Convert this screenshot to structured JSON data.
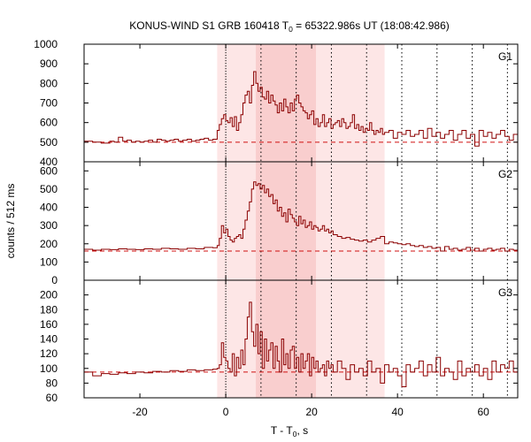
{
  "chart_data": {
    "type": "line",
    "title": {
      "prefix": "KONUS-WIND S1 GRB 160418 T",
      "sub": "0",
      "suffix": " = 65322.986s UT (18:08:42.986)"
    },
    "xlabel": {
      "prefix": "T - T",
      "sub": "0",
      "suffix": ", s"
    },
    "ylabel": "counts / 512 ms",
    "xlim": [
      -33,
      68
    ],
    "xticks": [
      -20,
      0,
      20,
      40,
      60
    ],
    "colors": {
      "line": "#8b0000",
      "background_dashed": "#d01010",
      "shade_outer": "#fde6e6",
      "shade_inner": "#f9cece",
      "markers": "#000000"
    },
    "shading": [
      {
        "from": -2,
        "to": 37,
        "level": "outer"
      },
      {
        "from": 7,
        "to": 21,
        "level": "inner"
      }
    ],
    "markers": [
      0,
      8.2,
      16.4,
      24.6,
      32.8,
      41,
      49.2,
      57.4,
      65.6
    ],
    "panels": [
      {
        "name": "G1",
        "ylim": [
          400,
          1000
        ],
        "yticks": [
          400,
          500,
          600,
          700,
          800,
          900,
          1000
        ],
        "background": 500,
        "x": [
          -33,
          -31,
          -29,
          -27,
          -26,
          -25,
          -24,
          -23,
          -22,
          -21,
          -20,
          -19,
          -18,
          -17,
          -16,
          -15,
          -14,
          -13,
          -12,
          -11,
          -10,
          -9,
          -8,
          -7,
          -6,
          -5,
          -4,
          -3,
          -2,
          -1.5,
          -1,
          -0.5,
          0,
          0.5,
          1,
          1.5,
          2,
          2.5,
          3,
          3.5,
          4,
          4.5,
          5,
          5.5,
          6,
          6.5,
          7,
          7.5,
          8,
          8.5,
          9,
          9.5,
          10,
          10.5,
          11,
          11.5,
          12,
          12.5,
          13,
          13.5,
          14,
          14.5,
          15,
          15.5,
          16,
          16.5,
          17,
          17.5,
          18,
          18.5,
          19,
          19.5,
          20,
          20.5,
          21,
          21.5,
          22,
          22.5,
          23,
          23.5,
          24,
          24.5,
          25,
          25.5,
          26,
          26.5,
          27,
          27.5,
          28,
          28.5,
          29,
          29.5,
          30,
          30.5,
          31,
          31.5,
          32,
          32.5,
          33,
          33.5,
          34,
          34.5,
          35,
          35.5,
          36,
          36.5,
          37,
          38,
          39,
          40,
          41,
          42,
          43,
          44,
          45,
          46,
          47,
          48,
          49,
          50,
          51,
          52,
          53,
          54,
          55,
          56,
          57,
          58,
          59,
          60,
          61,
          62,
          63,
          64,
          65,
          66,
          67,
          68
        ],
        "y": [
          505,
          500,
          495,
          505,
          500,
          525,
          505,
          510,
          500,
          505,
          500,
          505,
          510,
          500,
          515,
          510,
          505,
          510,
          515,
          505,
          510,
          515,
          505,
          510,
          515,
          520,
          510,
          515,
          560,
          590,
          620,
          640,
          610,
          600,
          625,
          580,
          630,
          560,
          600,
          640,
          700,
          740,
          760,
          700,
          790,
          860,
          800,
          760,
          780,
          730,
          720,
          760,
          700,
          740,
          710,
          690,
          650,
          700,
          660,
          720,
          680,
          650,
          700,
          660,
          720,
          740,
          700,
          680,
          660,
          650,
          620,
          640,
          660,
          590,
          620,
          580,
          600,
          640,
          580,
          600,
          620,
          570,
          590,
          600,
          610,
          580,
          620,
          600,
          570,
          580,
          600,
          640,
          570,
          590,
          560,
          580,
          550,
          570,
          560,
          600,
          560,
          540,
          560,
          550,
          570,
          540,
          550,
          560,
          520,
          550,
          540,
          560,
          530,
          540,
          560,
          520,
          570,
          530,
          550,
          520,
          540,
          560,
          510,
          540,
          560,
          520,
          540,
          480,
          560,
          530,
          550,
          520,
          540,
          560,
          530,
          510,
          540,
          505
        ]
      },
      {
        "name": "G2",
        "ylim": [
          0,
          650
        ],
        "yticks": [
          0,
          100,
          200,
          300,
          400,
          500,
          600
        ],
        "background": 160,
        "x": [
          -33,
          -31,
          -29,
          -27,
          -25,
          -23,
          -21,
          -19,
          -17,
          -15,
          -13,
          -11,
          -9,
          -7,
          -5,
          -3,
          -2,
          -1.5,
          -1,
          -0.5,
          0,
          0.5,
          1,
          1.5,
          2,
          2.5,
          3,
          3.5,
          4,
          4.5,
          5,
          5.5,
          6,
          6.5,
          7,
          7.5,
          8,
          8.5,
          9,
          9.5,
          10,
          10.5,
          11,
          11.5,
          12,
          12.5,
          13,
          13.5,
          14,
          14.5,
          15,
          15.5,
          16,
          16.5,
          17,
          17.5,
          18,
          18.5,
          19,
          19.5,
          20,
          20.5,
          21,
          21.5,
          22,
          22.5,
          23,
          23.5,
          24,
          24.5,
          25,
          26,
          27,
          28,
          29,
          30,
          31,
          32,
          33,
          34,
          35,
          36,
          37,
          38,
          39,
          40,
          41,
          42,
          43,
          44,
          45,
          46,
          47,
          48,
          49,
          50,
          51,
          52,
          53,
          54,
          55,
          56,
          57,
          58,
          59,
          60,
          61,
          62,
          63,
          64,
          65,
          66,
          67,
          68
        ],
        "y": [
          170,
          165,
          170,
          168,
          172,
          170,
          168,
          172,
          170,
          175,
          172,
          170,
          175,
          172,
          180,
          178,
          190,
          230,
          300,
          260,
          280,
          240,
          220,
          210,
          230,
          240,
          250,
          230,
          280,
          330,
          380,
          430,
          500,
          540,
          520,
          530,
          500,
          520,
          480,
          500,
          460,
          470,
          420,
          440,
          380,
          400,
          350,
          370,
          320,
          390,
          360,
          340,
          320,
          300,
          350,
          310,
          330,
          290,
          300,
          320,
          280,
          300,
          290,
          270,
          280,
          300,
          270,
          280,
          260,
          270,
          250,
          240,
          230,
          235,
          225,
          220,
          215,
          220,
          210,
          220,
          230,
          240,
          200,
          210,
          205,
          200,
          195,
          200,
          190,
          185,
          190,
          180,
          185,
          175,
          180,
          160,
          185,
          170,
          175,
          165,
          170,
          180,
          165,
          175,
          160,
          170,
          175,
          165,
          170,
          175,
          160,
          170,
          165,
          175
        ]
      },
      {
        "name": "G3",
        "ylim": [
          60,
          220
        ],
        "yticks": [
          60,
          80,
          100,
          120,
          140,
          160,
          180,
          200
        ],
        "background": 95,
        "x": [
          -33,
          -31,
          -29,
          -27,
          -25,
          -23,
          -21,
          -19,
          -17,
          -15,
          -13,
          -11,
          -9,
          -7,
          -5,
          -3,
          -2,
          -1.5,
          -1,
          -0.5,
          0,
          0.5,
          1,
          1.5,
          2,
          2.5,
          3,
          3.5,
          4,
          4.5,
          5,
          5.5,
          6,
          6.5,
          7,
          7.5,
          8,
          8.5,
          9,
          9.5,
          10,
          10.5,
          11,
          11.5,
          12,
          12.5,
          13,
          13.5,
          14,
          14.5,
          15,
          15.5,
          16,
          16.5,
          17,
          17.5,
          18,
          18.5,
          19,
          19.5,
          20,
          20.5,
          21,
          21.5,
          22,
          22.5,
          23,
          23.5,
          24,
          24.5,
          25,
          26,
          27,
          28,
          29,
          30,
          31,
          32,
          33,
          34,
          35,
          36,
          37,
          38,
          39,
          40,
          41,
          42,
          43,
          44,
          45,
          46,
          47,
          48,
          49,
          50,
          51,
          52,
          53,
          54,
          55,
          56,
          57,
          58,
          59,
          60,
          61,
          62,
          63,
          64,
          65,
          66,
          67,
          68
        ],
        "y": [
          95,
          90,
          93,
          92,
          94,
          93,
          95,
          94,
          96,
          95,
          97,
          96,
          98,
          97,
          98,
          99,
          100,
          105,
          135,
          115,
          110,
          100,
          95,
          120,
          90,
          115,
          100,
          125,
          105,
          140,
          170,
          190,
          150,
          130,
          160,
          120,
          150,
          100,
          140,
          110,
          125,
          135,
          100,
          130,
          110,
          95,
          140,
          105,
          120,
          100,
          125,
          130,
          100,
          115,
          95,
          120,
          100,
          110,
          120,
          90,
          115,
          100,
          110,
          95,
          100,
          105,
          90,
          110,
          100,
          105,
          95,
          110,
          100,
          85,
          105,
          95,
          100,
          90,
          110,
          95,
          100,
          80,
          105,
          95,
          100,
          90,
          75,
          105,
          95,
          100,
          110,
          90,
          105,
          95,
          115,
          90,
          100,
          95,
          85,
          110,
          90,
          100,
          95,
          105,
          90,
          100,
          85,
          110,
          95,
          105,
          100,
          110,
          95,
          105
        ]
      }
    ]
  }
}
